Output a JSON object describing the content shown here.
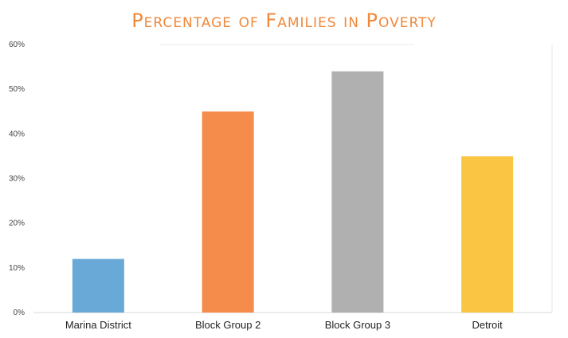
{
  "chart_data": {
    "type": "bar",
    "title": "Percentage of Families in Poverty",
    "categories": [
      "Marina District",
      "Block Group 2",
      "Block Group 3",
      "Detroit"
    ],
    "values": [
      12,
      45,
      54,
      35
    ],
    "unit": "%",
    "ylim": [
      0,
      60
    ],
    "yticks": [
      0,
      10,
      20,
      30,
      40,
      50,
      60
    ],
    "ytick_labels": [
      "0%",
      "10%",
      "20%",
      "30%",
      "40%",
      "50%",
      "60%"
    ],
    "xlabel": "",
    "ylabel": "",
    "grid": false,
    "colors": [
      "#68a9d8",
      "#f58c4c",
      "#b0b0b0",
      "#fbc544"
    ]
  }
}
